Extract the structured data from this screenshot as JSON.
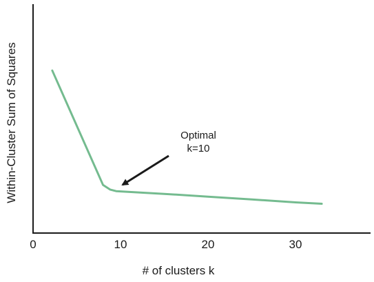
{
  "chart_data": {
    "type": "line",
    "title": "",
    "xlabel": "# of clusters k",
    "ylabel": "Within-Cluster Sum of Squares",
    "xlim": [
      0,
      35
    ],
    "ylim": [
      0,
      100
    ],
    "x_ticks": [
      "0",
      "10",
      "20",
      "30"
    ],
    "y_ticks_shown": false,
    "grid": false,
    "legend": "none",
    "series": [
      {
        "x": [
          2.2,
          8.0,
          8.8,
          9.5,
          10,
          15,
          20,
          25,
          30,
          33
        ],
        "y": [
          71,
          21,
          19,
          18.3,
          18.2,
          17.1,
          15.9,
          14.7,
          13.4,
          12.8
        ]
      }
    ],
    "annotation": {
      "lines": [
        "Optimal",
        "k=10"
      ],
      "point_x": 10,
      "point_y": 18.2
    },
    "colors": {
      "line": "#74bb8f",
      "axis": "#1a1a1a",
      "arrow": "#1a1a1a"
    }
  }
}
